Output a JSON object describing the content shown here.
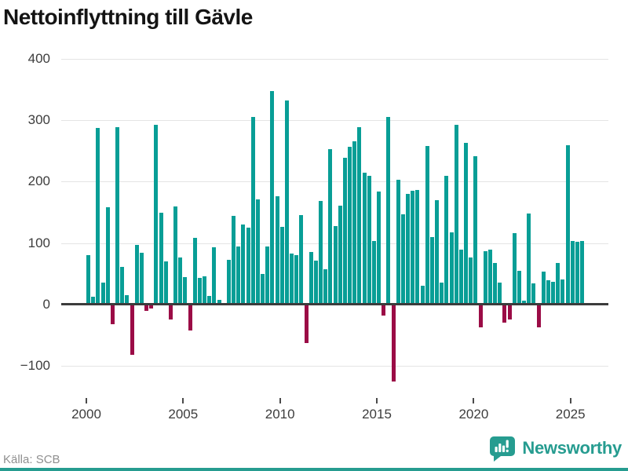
{
  "source_label": "Källa: SCB",
  "brand": {
    "name": "Newsworthy",
    "color": "#269C90",
    "icon": "newsworthy-bar-chart-bubble-icon"
  },
  "chart_data": {
    "type": "bar",
    "title": "Nettoinflyttning till Gävle",
    "xlabel": "",
    "ylabel": "",
    "frequency": "quarterly",
    "start_period": "2000Q1",
    "end_period": "2025Q3",
    "values": [
      81,
      13,
      287,
      36,
      158,
      -32,
      289,
      61,
      15,
      -82,
      97,
      84,
      -10,
      -7,
      293,
      150,
      70,
      -25,
      160,
      77,
      45,
      -42,
      108,
      43,
      46,
      14,
      93,
      8,
      3,
      73,
      144,
      95,
      130,
      125,
      306,
      171,
      50,
      94,
      347,
      176,
      127,
      332,
      83,
      80,
      145,
      -63,
      85,
      72,
      169,
      57,
      253,
      128,
      161,
      239,
      257,
      266,
      289,
      215,
      209,
      103,
      184,
      -18,
      306,
      -125,
      203,
      147,
      180,
      185,
      186,
      31,
      258,
      110,
      170,
      35,
      210,
      117,
      293,
      89,
      263,
      76,
      242,
      -37,
      87,
      89,
      68,
      35,
      -30,
      -24,
      116,
      55,
      6,
      148,
      34,
      -38,
      54,
      39,
      37,
      68,
      41,
      259,
      104,
      102,
      103
    ],
    "xticks": [
      2000,
      2005,
      2010,
      2015,
      2020,
      2025
    ],
    "yticks": [
      400,
      300,
      200,
      100,
      0,
      -100
    ],
    "ylim": [
      -140,
      410
    ],
    "grid": "horizontal",
    "legend": "none",
    "positive_color": "#089E96",
    "negative_color": "#9B0C46"
  }
}
